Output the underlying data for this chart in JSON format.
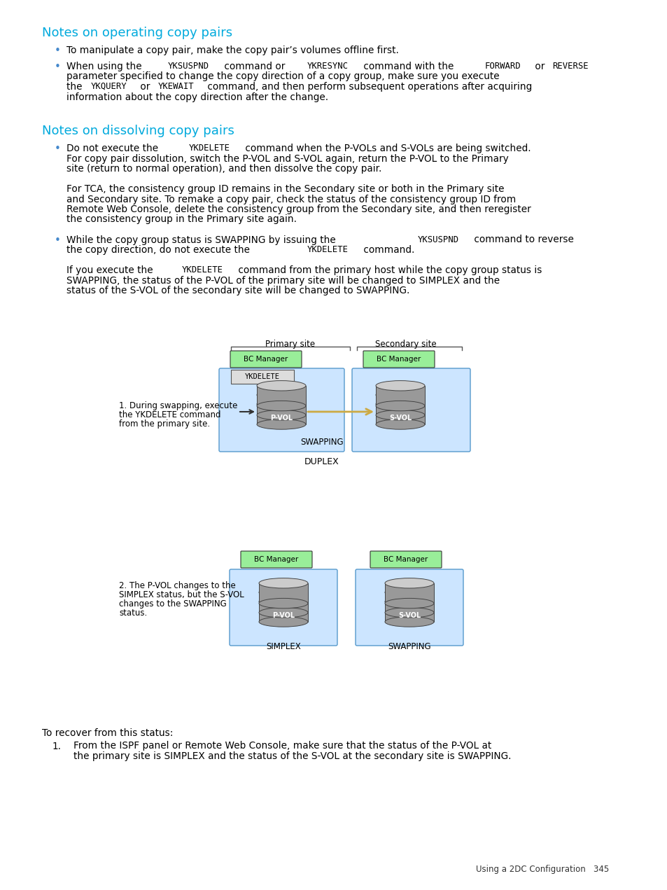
{
  "title": "Notes on operating copy pairs",
  "title2": "Notes on dissolving copy pairs",
  "bg_color": "#ffffff",
  "heading_color": "#00aadd",
  "text_color": "#000000",
  "body_font_size": 9.5,
  "heading_font_size": 12,
  "page_footer": "Using a 2DC Configuration   345",
  "section1_bullets": [
    "To manipulate a copy pair, make the copy pair’s volumes offline first.",
    "When using the {YKSUSPND} command or {YKRESYNC} command with the {FORWARD} or {REVERSE}\nparameter specified to change the copy direction of a copy group, make sure you execute\nthe {YKQUERY} or {YKEWAIT} command, and then perform subsequent operations after acquiring\ninformation about the copy direction after the change."
  ],
  "section2_bullets": [
    "Do not execute the {YKDELETE} command when the P-VOLs and S-VOLs are being switched.\nFor copy pair dissolution, switch the P-VOL and S-VOL again, return the P-VOL to the Primary\nsite (return to normal operation), and then dissolve the copy pair.\n\nFor TCA, the consistency group ID remains in the Secondary site or both in the Primary site\nand Secondary site. To remake a copy pair, check the status of the consistency group ID from\nRemote Web Console, delete the consistency group from the Secondary site, and then reregister\nthe consistency group in the Primary site again.",
    "While the copy group status is SWAPPING by issuing the {YKSUSPND} command to reverse\nthe copy direction, do not execute the {YKDELETE} command.\n\nIf you execute the {YKDELETE} command from the primary host while the copy group status is\nSWAPPING, the status of the P-VOL of the primary site will be changed to SIMPLEX and the\nstatus of the S-VOL of the secondary site will be changed to SWAPPING."
  ],
  "recover_text": "To recover from this status:",
  "recover_list": [
    "From the ISPF panel or Remote Web Console, make sure that the status of the P-VOL at\nthe primary site is SIMPLEX and the status of the S-VOL at the secondary site is SWAPPING."
  ]
}
